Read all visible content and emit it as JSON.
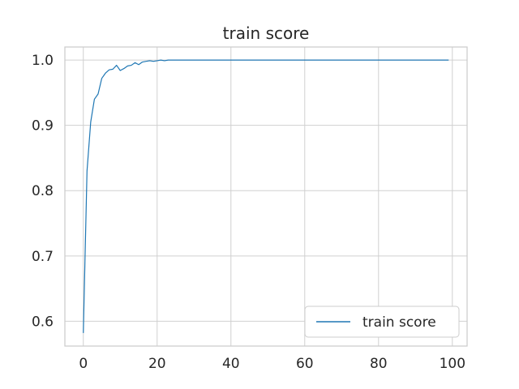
{
  "chart_data": {
    "type": "line",
    "title": "train score",
    "xlabel": "",
    "ylabel": "",
    "xlim": [
      -5,
      104
    ],
    "ylim": [
      0.562,
      1.02
    ],
    "xticks": [
      0,
      20,
      40,
      60,
      80,
      100
    ],
    "yticks": [
      0.6,
      0.7,
      0.8,
      0.9,
      1.0
    ],
    "xtick_labels": [
      "0",
      "20",
      "40",
      "60",
      "80",
      "100"
    ],
    "ytick_labels": [
      "0.6",
      "0.7",
      "0.8",
      "0.9",
      "1.0"
    ],
    "grid": true,
    "legend_position": "lower-right",
    "series": [
      {
        "name": "train score",
        "color": "#1f77b4",
        "x": [
          0,
          1,
          2,
          3,
          4,
          5,
          6,
          7,
          8,
          9,
          10,
          11,
          12,
          13,
          14,
          15,
          16,
          17,
          18,
          19,
          20,
          21,
          22,
          23,
          24,
          25,
          26,
          27,
          28,
          29,
          30,
          31,
          32,
          33,
          34,
          35,
          36,
          37,
          38,
          39,
          40,
          41,
          42,
          43,
          44,
          45,
          46,
          47,
          48,
          49,
          50,
          51,
          52,
          53,
          54,
          55,
          56,
          57,
          58,
          59,
          60,
          61,
          62,
          63,
          64,
          65,
          66,
          67,
          68,
          69,
          70,
          71,
          72,
          73,
          74,
          75,
          76,
          77,
          78,
          79,
          80,
          81,
          82,
          83,
          84,
          85,
          86,
          87,
          88,
          89,
          90,
          91,
          92,
          93,
          94,
          95,
          96,
          97,
          98,
          99
        ],
        "y": [
          0.582,
          0.83,
          0.905,
          0.94,
          0.948,
          0.972,
          0.98,
          0.985,
          0.986,
          0.992,
          0.984,
          0.987,
          0.991,
          0.992,
          0.996,
          0.993,
          0.997,
          0.998,
          0.999,
          0.998,
          0.999,
          1.0,
          0.999,
          1.0,
          1.0,
          1.0,
          1.0,
          1.0,
          1.0,
          1.0,
          1.0,
          1.0,
          1.0,
          1.0,
          1.0,
          1.0,
          1.0,
          1.0,
          1.0,
          1.0,
          1.0,
          1.0,
          1.0,
          1.0,
          1.0,
          1.0,
          1.0,
          1.0,
          1.0,
          1.0,
          1.0,
          1.0,
          1.0,
          1.0,
          1.0,
          1.0,
          1.0,
          1.0,
          1.0,
          1.0,
          1.0,
          1.0,
          1.0,
          1.0,
          1.0,
          1.0,
          1.0,
          1.0,
          1.0,
          1.0,
          1.0,
          1.0,
          1.0,
          1.0,
          1.0,
          1.0,
          1.0,
          1.0,
          1.0,
          1.0,
          1.0,
          1.0,
          1.0,
          1.0,
          1.0,
          1.0,
          1.0,
          1.0,
          1.0,
          1.0,
          1.0,
          1.0,
          1.0,
          1.0,
          1.0,
          1.0,
          1.0,
          1.0,
          1.0,
          1.0
        ]
      }
    ]
  }
}
